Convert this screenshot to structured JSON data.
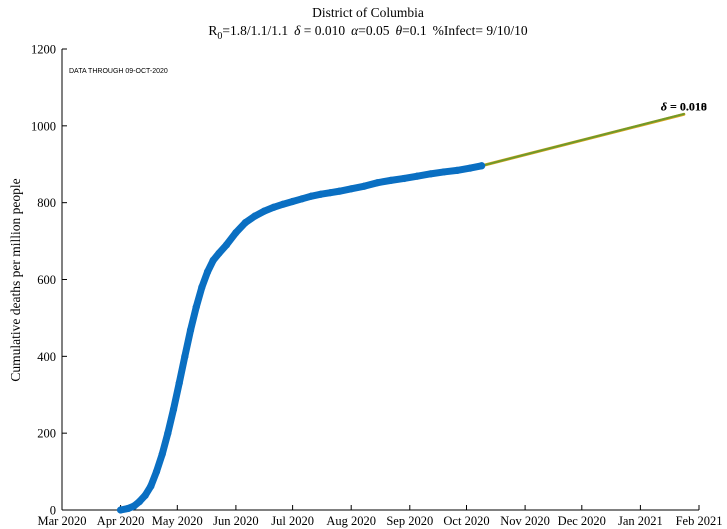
{
  "chart_data": {
    "type": "line",
    "title": "District of Columbia",
    "subtitle": {
      "r0_prefix": "R",
      "r0_sub": "0",
      "r0_value": "=1.8/1.1/1.1",
      "delta_sym": "δ",
      "delta_value": " = 0.010",
      "alpha_sym": "α",
      "alpha_value": "=0.05",
      "theta_sym": "θ",
      "theta_value": "=0.1",
      "infect": "%Infect= 9/10/10"
    },
    "annotation": "DATA THROUGH 09-OCT-2020",
    "ylabel": "Cumulative deaths per million people",
    "xlabel": "",
    "ylim": [
      0,
      1200
    ],
    "yticks": [
      0,
      200,
      400,
      600,
      800,
      1000,
      1200
    ],
    "xticks": [
      {
        "date": "2020-03-01",
        "label": "Mar 2020"
      },
      {
        "date": "2020-04-01",
        "label": "Apr 2020"
      },
      {
        "date": "2020-05-01",
        "label": "May 2020"
      },
      {
        "date": "2020-06-01",
        "label": "Jun 2020"
      },
      {
        "date": "2020-07-01",
        "label": "Jul 2020"
      },
      {
        "date": "2020-08-01",
        "label": "Aug 2020"
      },
      {
        "date": "2020-09-01",
        "label": "Sep 2020"
      },
      {
        "date": "2020-10-01",
        "label": "Oct 2020"
      },
      {
        "date": "2020-11-01",
        "label": "Nov 2020"
      },
      {
        "date": "2020-12-01",
        "label": "Dec 2020"
      },
      {
        "date": "2021-01-01",
        "label": "Jan 2021"
      },
      {
        "date": "2021-02-01",
        "label": "Feb 2021"
      }
    ],
    "xlim": [
      "2020-03-01",
      "2021-02-01"
    ],
    "grid": false,
    "colors": {
      "observed": "#0a6fc2",
      "projection_a": "#d6a21e",
      "projection_b": "#6f9a2a"
    },
    "series": [
      {
        "values": [
          [
            "2020-04-01",
            0
          ],
          [
            "2020-04-05",
            4
          ],
          [
            "2020-04-08",
            10
          ],
          [
            "2020-04-11",
            22
          ],
          [
            "2020-04-14",
            38
          ],
          [
            "2020-04-17",
            62
          ],
          [
            "2020-04-20",
            100
          ],
          [
            "2020-04-23",
            145
          ],
          [
            "2020-04-26",
            200
          ],
          [
            "2020-04-29",
            262
          ],
          [
            "2020-05-02",
            330
          ],
          [
            "2020-05-05",
            400
          ],
          [
            "2020-05-08",
            468
          ],
          [
            "2020-05-11",
            528
          ],
          [
            "2020-05-14",
            580
          ],
          [
            "2020-05-17",
            620
          ],
          [
            "2020-05-20",
            650
          ],
          [
            "2020-05-23",
            668
          ],
          [
            "2020-05-27",
            690
          ],
          [
            "2020-06-01",
            722
          ],
          [
            "2020-06-06",
            748
          ],
          [
            "2020-06-11",
            765
          ],
          [
            "2020-06-16",
            778
          ],
          [
            "2020-06-21",
            788
          ],
          [
            "2020-06-26",
            796
          ],
          [
            "2020-07-01",
            803
          ],
          [
            "2020-07-06",
            810
          ],
          [
            "2020-07-11",
            817
          ],
          [
            "2020-07-16",
            822
          ],
          [
            "2020-07-21",
            826
          ],
          [
            "2020-07-26",
            830
          ],
          [
            "2020-08-01",
            836
          ],
          [
            "2020-08-08",
            843
          ],
          [
            "2020-08-15",
            852
          ],
          [
            "2020-08-22",
            858
          ],
          [
            "2020-08-29",
            863
          ],
          [
            "2020-09-05",
            869
          ],
          [
            "2020-09-12",
            875
          ],
          [
            "2020-09-19",
            880
          ],
          [
            "2020-09-26",
            884
          ],
          [
            "2020-10-03",
            890
          ],
          [
            "2020-10-09",
            896
          ]
        ]
      },
      {
        "values": [
          [
            "2020-10-09",
            896
          ],
          [
            "2021-01-24",
            1030
          ]
        ]
      },
      {
        "values": [
          [
            "2020-10-09",
            896
          ],
          [
            "2021-01-24",
            1031
          ]
        ]
      }
    ],
    "projection_labels": [
      {
        "sym": "δ",
        "value": " = 0.018",
        "y": 1050
      },
      {
        "sym": "δ",
        "value": " = 0.010",
        "y": 1050
      }
    ]
  }
}
